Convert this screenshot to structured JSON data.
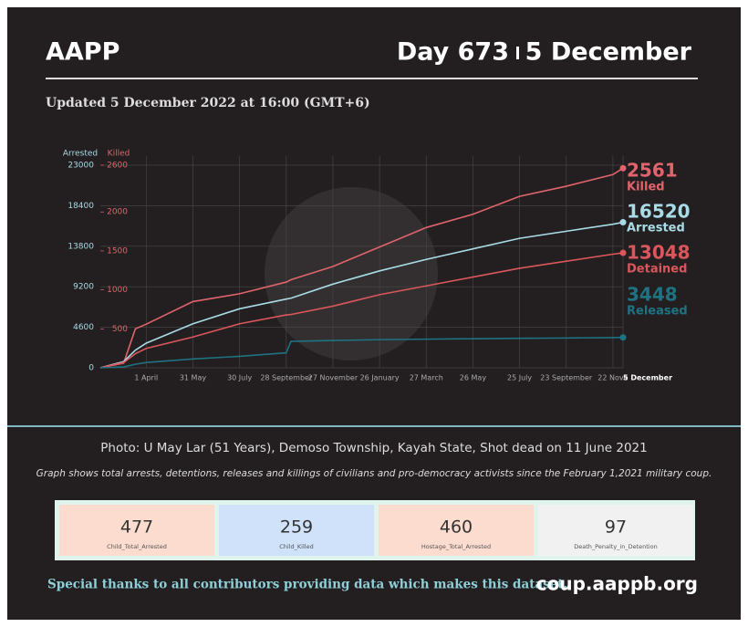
{
  "header": {
    "title": "AAPP",
    "day": "Day 673",
    "date": "5 December",
    "updated": "Updated 5 December 2022 at 16:00 (GMT+6)"
  },
  "chart_data": {
    "type": "line",
    "ylabel": "Arrested",
    "y2label": "Killed",
    "x": [
      0,
      30,
      45,
      59,
      119,
      179,
      239,
      245,
      299,
      359,
      419,
      479,
      539,
      599,
      659,
      672
    ],
    "xlim": [
      0,
      672
    ],
    "xticks": [
      {
        "value": 59,
        "label": "1 April"
      },
      {
        "value": 119,
        "label": "31 May"
      },
      {
        "value": 179,
        "label": "30 July"
      },
      {
        "value": 239,
        "label": "28 September"
      },
      {
        "value": 299,
        "label": "27 November"
      },
      {
        "value": 359,
        "label": "26 January"
      },
      {
        "value": 419,
        "label": "27 March"
      },
      {
        "value": 479,
        "label": "26 May"
      },
      {
        "value": 539,
        "label": "25 July"
      },
      {
        "value": 599,
        "label": "23 September"
      },
      {
        "value": 659,
        "label": "22 Nove"
      },
      {
        "value": 672,
        "label": "5 December"
      }
    ],
    "ylim": [
      0,
      23000
    ],
    "yticks": [
      0,
      4600,
      9200,
      13800,
      18400,
      23000
    ],
    "y2lim": [
      0,
      2600
    ],
    "y2ticks": [
      500,
      1000,
      1500,
      2000,
      2600
    ],
    "grid": true,
    "series": [
      {
        "name": "Killed",
        "color": "#e0646c",
        "axis": "y2",
        "values": [
          0,
          60,
          500,
          560,
          850,
          950,
          1100,
          1130,
          1300,
          1550,
          1800,
          1970,
          2200,
          2330,
          2480,
          2561
        ]
      },
      {
        "name": "Arrested",
        "color": "#a9dbe6",
        "values": [
          0,
          700,
          2000,
          2800,
          5000,
          6700,
          7800,
          7900,
          9500,
          11000,
          12300,
          13500,
          14700,
          15500,
          16300,
          16520
        ]
      },
      {
        "name": "Detained",
        "color": "#d9575c",
        "values": [
          0,
          600,
          1600,
          2200,
          3500,
          5000,
          6000,
          6050,
          7000,
          8300,
          9300,
          10300,
          11300,
          12100,
          12900,
          13048
        ]
      },
      {
        "name": "Released",
        "color": "#1f7282",
        "values": [
          0,
          100,
          400,
          600,
          1000,
          1300,
          1700,
          3000,
          3100,
          3200,
          3250,
          3300,
          3350,
          3380,
          3430,
          3448
        ]
      }
    ]
  },
  "caption": "Photo: U May Lar (51 Years), Demoso Township, Kayah State, Shot dead on 11 June 2021",
  "note": "Graph shows total arrests, detentions, releases and killings of civilians and pro-democracy activists since the February 1,2021 military coup.",
  "stats": [
    {
      "value": 477,
      "label": "Child_Total_Arrested",
      "color": "#fbdccf"
    },
    {
      "value": 259,
      "label": "Child_Killed",
      "color": "#cfe2fa"
    },
    {
      "value": 460,
      "label": "Hostage_Total_Arrested",
      "color": "#fbdccf"
    },
    {
      "value": 97,
      "label": "Death_Penalty_in_Detention",
      "color": "#f1f1f1"
    }
  ],
  "footer": {
    "thanks": "Special thanks to all contributors providing data which makes this dataset.",
    "url": "coup.aappb.org"
  }
}
